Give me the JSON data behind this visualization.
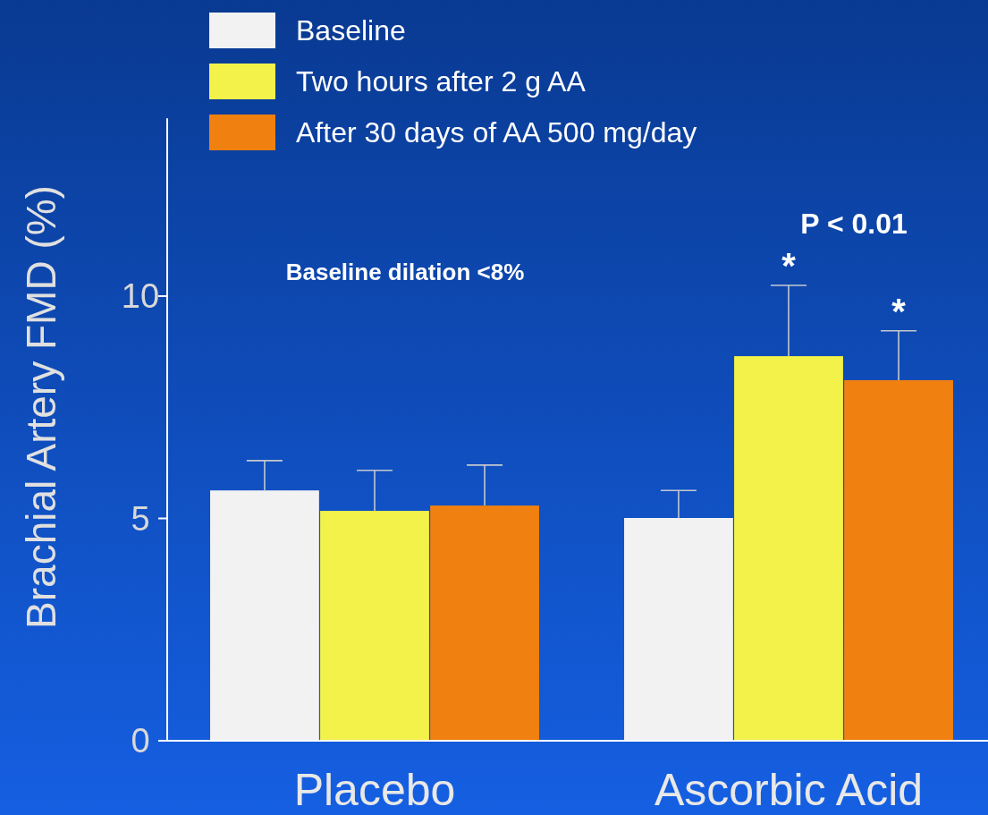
{
  "chart_data": {
    "type": "bar",
    "ylabel": "Brachial Artery FMD (%)",
    "categories": [
      "Placebo",
      "Ascorbic Acid"
    ],
    "series": [
      {
        "name": "Baseline",
        "color": "#f2f2f2",
        "values": [
          5.63,
          5.01
        ],
        "errors": [
          [
            5.63,
            6.3
          ],
          [
            5.01,
            5.63
          ]
        ]
      },
      {
        "name": "Two hours after 2 g AA",
        "color": "#f2f24a",
        "values": [
          5.17,
          8.65
        ],
        "errors": [
          [
            5.17,
            6.08
          ],
          [
            8.65,
            10.24
          ]
        ]
      },
      {
        "name": "After 30 days of AA 500 mg/day",
        "color": "#f08010",
        "values": [
          5.29,
          8.11
        ],
        "errors": [
          [
            5.29,
            6.2
          ],
          [
            8.11,
            9.22
          ]
        ]
      }
    ],
    "ylim": [
      0,
      14
    ],
    "yticks": [
      0,
      5,
      10
    ],
    "grid": false,
    "legend": "top left",
    "annotations": [
      "Baseline dilation <8%",
      "P < 0.01",
      {
        "text": "*",
        "x": "Ascorbic Acid",
        "y": 10.24
      },
      {
        "text": "*",
        "x": "Ascorbic Acid",
        "y": 9.22
      }
    ]
  }
}
